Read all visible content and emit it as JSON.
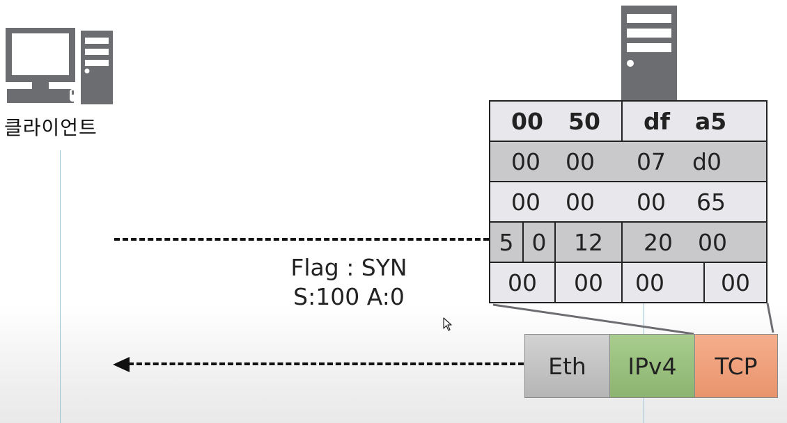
{
  "client": {
    "label": "클라이언트"
  },
  "packet_label": {
    "flag": "Flag : SYN",
    "seq_ack": "S:100 A:0"
  },
  "tcp_header": {
    "rows": [
      [
        "00",
        "50",
        "df",
        "a5"
      ],
      [
        "00",
        "00",
        "07",
        "d0"
      ],
      [
        "00",
        "00",
        "00",
        "65"
      ],
      [
        "5",
        "0",
        "12",
        "20",
        "00"
      ],
      [
        "00",
        "00",
        "00",
        "00"
      ]
    ]
  },
  "frame": {
    "eth": "Eth",
    "ipv4": "IPv4",
    "tcp": "TCP"
  },
  "colors": {
    "row_light": "#e8e8ec",
    "row_dark": "#c9c9cc",
    "icon_gray": "#6c6d70",
    "eth": "#c2c2c2",
    "ipv4": "#98c07c",
    "tcp": "#ef9f7a",
    "timeline": "#9cc0d4"
  },
  "icons": {
    "client": "desktop-computer-icon",
    "server": "server-tower-icon",
    "cursor": "mouse-cursor-icon"
  }
}
